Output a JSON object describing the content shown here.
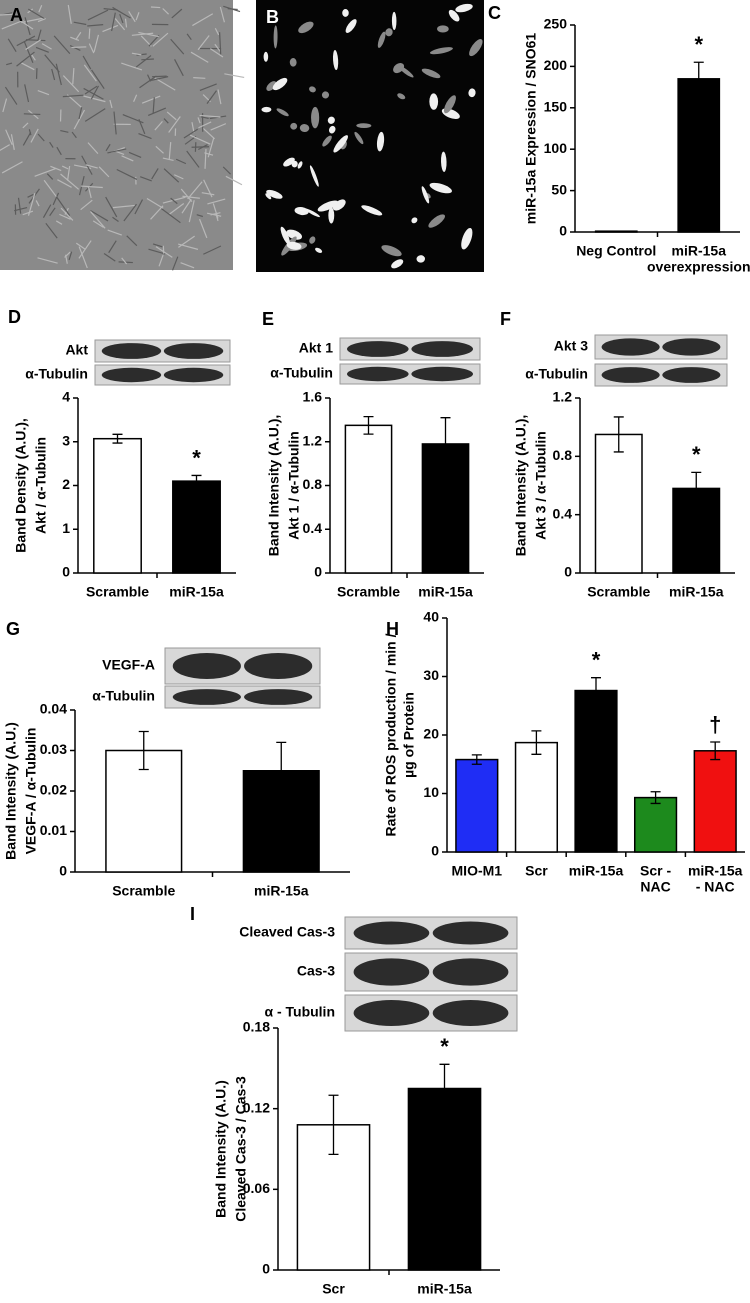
{
  "panel_labels": [
    "A",
    "B"
  ],
  "chart_data": [
    {
      "type": "bar",
      "panel": "C",
      "ylabel": [
        "miR-15a Expression / SNO61"
      ],
      "categories": [
        [
          "Neg Control"
        ],
        [
          "miR-15a",
          "overexpression"
        ]
      ],
      "values": [
        1,
        185
      ],
      "errors": [
        null,
        20
      ],
      "colors": [
        "#000000",
        "#000000"
      ],
      "annotations": [
        null,
        "*"
      ],
      "ylim": [
        0,
        250
      ],
      "yticks": [
        0,
        50,
        100,
        150,
        200,
        250
      ]
    },
    {
      "type": "bar",
      "panel": "D",
      "ylabel": [
        "Band Density (A.U.),",
        "Akt / α-Tubulin"
      ],
      "blot_labels": [
        "Akt",
        "α-Tubulin"
      ],
      "categories": [
        [
          "Scramble"
        ],
        [
          "miR-15a"
        ]
      ],
      "values": [
        3.07,
        2.1
      ],
      "errors": [
        0.1,
        0.13
      ],
      "colors": [
        "#ffffff",
        "#000000"
      ],
      "annotations": [
        null,
        "*"
      ],
      "ylim": [
        0,
        4
      ],
      "yticks": [
        0,
        1,
        2,
        3,
        4
      ]
    },
    {
      "type": "bar",
      "panel": "E",
      "ylabel": [
        "Band Intensity (A.U.),",
        "Akt 1 / α-Tubulin"
      ],
      "blot_labels": [
        "Akt 1",
        "α-Tubulin"
      ],
      "categories": [
        [
          "Scramble"
        ],
        [
          "miR-15a"
        ]
      ],
      "values": [
        1.35,
        1.18
      ],
      "errors": [
        0.08,
        0.24
      ],
      "colors": [
        "#ffffff",
        "#000000"
      ],
      "annotations": [
        null,
        null
      ],
      "ylim": [
        0,
        1.6
      ],
      "yticks": [
        0,
        0.4,
        0.8,
        1.2,
        1.6
      ]
    },
    {
      "type": "bar",
      "panel": "F",
      "ylabel": [
        "Band Intensity (A.U.),",
        "Akt 3 / α-Tubulin"
      ],
      "blot_labels": [
        "Akt 3",
        "α-Tubulin"
      ],
      "categories": [
        [
          "Scramble"
        ],
        [
          "miR-15a"
        ]
      ],
      "values": [
        0.95,
        0.58
      ],
      "errors": [
        0.12,
        0.11
      ],
      "colors": [
        "#ffffff",
        "#000000"
      ],
      "annotations": [
        null,
        "*"
      ],
      "ylim": [
        0,
        1.2
      ],
      "yticks": [
        0,
        0.4,
        0.8,
        1.2
      ]
    },
    {
      "type": "bar",
      "panel": "G",
      "ylabel": [
        "Band Intensity (A.U.)",
        "VEGF-A / α-Tubulin"
      ],
      "blot_labels": [
        "VEGF-A",
        "α-Tubulin"
      ],
      "categories": [
        [
          "Scramble"
        ],
        [
          "miR-15a"
        ]
      ],
      "values": [
        0.03,
        0.025
      ],
      "errors": [
        0.0047,
        0.007
      ],
      "colors": [
        "#ffffff",
        "#000000"
      ],
      "annotations": [
        null,
        null
      ],
      "ylim": [
        0,
        0.04
      ],
      "yticks": [
        0,
        0.01,
        0.02,
        0.03,
        0.04
      ]
    },
    {
      "type": "bar",
      "panel": "H",
      "ylabel": [
        "Rate of ROS production / min /",
        "µg of Protein"
      ],
      "categories": [
        [
          "MIO-M1"
        ],
        [
          "Scr"
        ],
        [
          "miR-15a"
        ],
        [
          "Scr -",
          "NAC"
        ],
        [
          "miR-15a",
          "- NAC"
        ]
      ],
      "values": [
        15.8,
        18.7,
        27.6,
        9.3,
        17.3
      ],
      "errors": [
        0.8,
        2,
        2.2,
        1,
        1.5
      ],
      "colors": [
        "#1f2df5",
        "#ffffff",
        "#000000",
        "#1d8a1d",
        "#f01010"
      ],
      "annotations": [
        null,
        null,
        "*",
        null,
        "†"
      ],
      "ylim": [
        0,
        40
      ],
      "yticks": [
        0,
        10,
        20,
        30,
        40
      ]
    },
    {
      "type": "bar",
      "panel": "I",
      "ylabel": [
        "Band Intensity (A.U.)",
        "Cleaved Cas-3 / Cas-3"
      ],
      "blot_labels": [
        "Cleaved Cas-3",
        "Cas-3",
        "α - Tubulin"
      ],
      "categories": [
        [
          "Scr"
        ],
        [
          "miR-15a"
        ]
      ],
      "values": [
        0.108,
        0.135
      ],
      "errors": [
        0.022,
        0.018
      ],
      "colors": [
        "#ffffff",
        "#000000"
      ],
      "annotations": [
        null,
        "*"
      ],
      "ylim": [
        0,
        0.18
      ],
      "yticks": [
        0,
        0.06,
        0.12,
        0.18
      ]
    }
  ]
}
